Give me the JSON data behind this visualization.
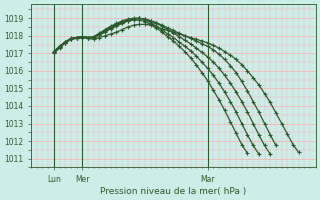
{
  "title": "Pression niveau de la mer( hPa )",
  "bg_color": "#cceee8",
  "grid_color": "#ffaaaa",
  "line_color": "#2d5a2d",
  "ylim": [
    1010.5,
    1019.8
  ],
  "yticks": [
    1011,
    1012,
    1013,
    1014,
    1015,
    1016,
    1017,
    1018,
    1019
  ],
  "xlim": [
    0,
    100
  ],
  "xtick_positions": [
    8,
    18,
    62
  ],
  "xtick_labels": [
    "Lun",
    "Mer",
    "Mar"
  ],
  "vline_positions": [
    8,
    18,
    62
  ],
  "series": [
    {
      "pts": [
        [
          8,
          1017.0
        ],
        [
          10,
          1017.3
        ],
        [
          12,
          1017.6
        ],
        [
          14,
          1017.8
        ],
        [
          16,
          1017.85
        ],
        [
          18,
          1017.9
        ],
        [
          20,
          1017.85
        ],
        [
          22,
          1017.8
        ],
        [
          24,
          1017.9
        ],
        [
          26,
          1018.0
        ],
        [
          28,
          1018.1
        ],
        [
          30,
          1018.2
        ],
        [
          32,
          1018.35
        ],
        [
          34,
          1018.5
        ],
        [
          36,
          1018.6
        ],
        [
          38,
          1018.65
        ],
        [
          40,
          1018.65
        ],
        [
          42,
          1018.6
        ],
        [
          44,
          1018.5
        ],
        [
          46,
          1018.4
        ],
        [
          48,
          1018.3
        ],
        [
          50,
          1018.2
        ],
        [
          52,
          1018.1
        ],
        [
          54,
          1018.0
        ],
        [
          56,
          1017.9
        ],
        [
          58,
          1017.8
        ],
        [
          60,
          1017.7
        ],
        [
          62,
          1017.6
        ],
        [
          64,
          1017.45
        ],
        [
          66,
          1017.3
        ],
        [
          68,
          1017.1
        ],
        [
          70,
          1016.9
        ],
        [
          72,
          1016.65
        ],
        [
          74,
          1016.35
        ],
        [
          76,
          1016.0
        ],
        [
          78,
          1015.6
        ],
        [
          80,
          1015.2
        ],
        [
          82,
          1014.7
        ],
        [
          84,
          1014.2
        ],
        [
          86,
          1013.6
        ],
        [
          88,
          1013.0
        ],
        [
          90,
          1012.4
        ],
        [
          92,
          1011.8
        ],
        [
          94,
          1011.35
        ]
      ]
    },
    {
      "pts": [
        [
          8,
          1017.1
        ],
        [
          10,
          1017.4
        ],
        [
          12,
          1017.65
        ],
        [
          14,
          1017.85
        ],
        [
          16,
          1017.9
        ],
        [
          18,
          1017.95
        ],
        [
          20,
          1017.9
        ],
        [
          22,
          1017.9
        ],
        [
          24,
          1018.05
        ],
        [
          26,
          1018.2
        ],
        [
          28,
          1018.4
        ],
        [
          30,
          1018.55
        ],
        [
          32,
          1018.7
        ],
        [
          34,
          1018.85
        ],
        [
          36,
          1018.95
        ],
        [
          38,
          1019.0
        ],
        [
          40,
          1018.95
        ],
        [
          42,
          1018.85
        ],
        [
          44,
          1018.75
        ],
        [
          46,
          1018.6
        ],
        [
          48,
          1018.45
        ],
        [
          50,
          1018.3
        ],
        [
          52,
          1018.15
        ],
        [
          54,
          1018.0
        ],
        [
          56,
          1017.85
        ],
        [
          58,
          1017.7
        ],
        [
          60,
          1017.55
        ],
        [
          62,
          1017.4
        ],
        [
          64,
          1017.2
        ],
        [
          66,
          1016.95
        ],
        [
          68,
          1016.65
        ],
        [
          70,
          1016.3
        ],
        [
          72,
          1015.9
        ],
        [
          74,
          1015.4
        ],
        [
          76,
          1014.85
        ],
        [
          78,
          1014.25
        ],
        [
          80,
          1013.65
        ],
        [
          82,
          1013.0
        ],
        [
          84,
          1012.35
        ],
        [
          86,
          1011.75
        ]
      ]
    },
    {
      "pts": [
        [
          8,
          1017.05
        ],
        [
          10,
          1017.35
        ],
        [
          12,
          1017.6
        ],
        [
          14,
          1017.8
        ],
        [
          16,
          1017.9
        ],
        [
          18,
          1017.95
        ],
        [
          20,
          1017.9
        ],
        [
          22,
          1017.92
        ],
        [
          24,
          1018.1
        ],
        [
          26,
          1018.3
        ],
        [
          28,
          1018.5
        ],
        [
          30,
          1018.65
        ],
        [
          32,
          1018.8
        ],
        [
          34,
          1018.9
        ],
        [
          36,
          1018.95
        ],
        [
          38,
          1019.0
        ],
        [
          40,
          1018.95
        ],
        [
          42,
          1018.85
        ],
        [
          44,
          1018.7
        ],
        [
          46,
          1018.55
        ],
        [
          48,
          1018.35
        ],
        [
          50,
          1018.15
        ],
        [
          52,
          1017.95
        ],
        [
          54,
          1017.75
        ],
        [
          56,
          1017.55
        ],
        [
          58,
          1017.3
        ],
        [
          60,
          1017.05
        ],
        [
          62,
          1016.8
        ],
        [
          64,
          1016.5
        ],
        [
          66,
          1016.15
        ],
        [
          68,
          1015.75
        ],
        [
          70,
          1015.3
        ],
        [
          72,
          1014.8
        ],
        [
          74,
          1014.25
        ],
        [
          76,
          1013.65
        ],
        [
          78,
          1013.0
        ],
        [
          80,
          1012.35
        ],
        [
          82,
          1011.75
        ],
        [
          84,
          1011.25
        ]
      ]
    },
    {
      "pts": [
        [
          8,
          1017.1
        ],
        [
          10,
          1017.4
        ],
        [
          12,
          1017.65
        ],
        [
          14,
          1017.85
        ],
        [
          16,
          1017.9
        ],
        [
          18,
          1017.95
        ],
        [
          20,
          1017.9
        ],
        [
          22,
          1017.95
        ],
        [
          24,
          1018.15
        ],
        [
          26,
          1018.35
        ],
        [
          28,
          1018.55
        ],
        [
          30,
          1018.7
        ],
        [
          32,
          1018.85
        ],
        [
          34,
          1018.95
        ],
        [
          36,
          1019.0
        ],
        [
          38,
          1019.0
        ],
        [
          40,
          1018.9
        ],
        [
          42,
          1018.75
        ],
        [
          44,
          1018.55
        ],
        [
          46,
          1018.35
        ],
        [
          48,
          1018.1
        ],
        [
          50,
          1017.9
        ],
        [
          52,
          1017.65
        ],
        [
          54,
          1017.4
        ],
        [
          56,
          1017.15
        ],
        [
          58,
          1016.85
        ],
        [
          60,
          1016.5
        ],
        [
          62,
          1016.15
        ],
        [
          64,
          1015.75
        ],
        [
          66,
          1015.3
        ],
        [
          68,
          1014.8
        ],
        [
          70,
          1014.25
        ],
        [
          72,
          1013.65
        ],
        [
          74,
          1013.0
        ],
        [
          76,
          1012.35
        ],
        [
          78,
          1011.75
        ],
        [
          80,
          1011.25
        ]
      ]
    },
    {
      "pts": [
        [
          8,
          1017.05
        ],
        [
          10,
          1017.35
        ],
        [
          12,
          1017.6
        ],
        [
          14,
          1017.8
        ],
        [
          16,
          1017.9
        ],
        [
          18,
          1017.95
        ],
        [
          20,
          1017.9
        ],
        [
          22,
          1017.9
        ],
        [
          24,
          1018.05
        ],
        [
          26,
          1018.25
        ],
        [
          28,
          1018.45
        ],
        [
          30,
          1018.6
        ],
        [
          32,
          1018.75
        ],
        [
          34,
          1018.85
        ],
        [
          36,
          1018.9
        ],
        [
          38,
          1018.9
        ],
        [
          40,
          1018.8
        ],
        [
          42,
          1018.65
        ],
        [
          44,
          1018.45
        ],
        [
          46,
          1018.2
        ],
        [
          48,
          1017.95
        ],
        [
          50,
          1017.7
        ],
        [
          52,
          1017.4
        ],
        [
          54,
          1017.1
        ],
        [
          56,
          1016.75
        ],
        [
          58,
          1016.35
        ],
        [
          60,
          1015.9
        ],
        [
          62,
          1015.45
        ],
        [
          64,
          1014.9
        ],
        [
          66,
          1014.35
        ],
        [
          68,
          1013.75
        ],
        [
          70,
          1013.1
        ],
        [
          72,
          1012.45
        ],
        [
          74,
          1011.8
        ],
        [
          76,
          1011.3
        ]
      ]
    }
  ]
}
